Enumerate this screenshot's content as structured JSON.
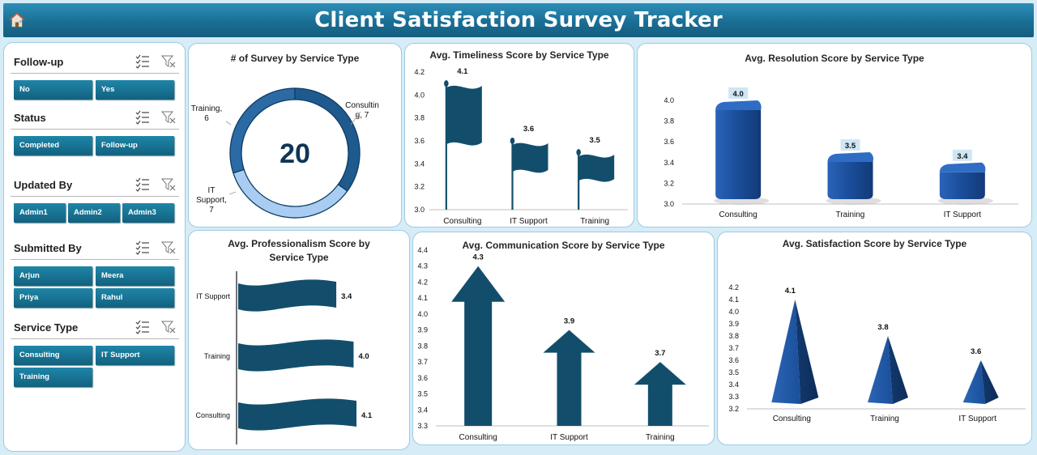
{
  "header": {
    "title": "Client Satisfaction Survey Tracker"
  },
  "colors": {
    "header": "#1a6e94",
    "navy": "#124e6b",
    "blue3d": "#1b55a3",
    "chip": "#15708f",
    "donut_dark": "#1f5a8f",
    "donut_light": "#a9cdf2"
  },
  "slicers": [
    {
      "id": "followup",
      "title": "Follow-up",
      "items": [
        "No",
        "Yes"
      ]
    },
    {
      "id": "status",
      "title": "Status",
      "items": [
        "Completed",
        "Follow-up"
      ]
    },
    {
      "id": "updated",
      "title": "Updated By",
      "items": [
        "Admin1",
        "Admin2",
        "Admin3"
      ]
    },
    {
      "id": "submitted",
      "title": "Submitted By",
      "items": [
        "Arjun",
        "Meera",
        "Priya",
        "Rahul"
      ]
    },
    {
      "id": "service",
      "title": "Service Type",
      "items": [
        "Consulting",
        "IT Support",
        "Training"
      ]
    }
  ],
  "slicer_icons": {
    "multiselect": "multi-select-icon",
    "clear": "clear-filter-icon"
  },
  "chart_data": [
    {
      "id": "surveys",
      "type": "pie",
      "title": "# of Survey  by Service Type",
      "center_label": "20",
      "categories": [
        "Consulting",
        "IT Support",
        "Training"
      ],
      "values": [
        7,
        7,
        6
      ],
      "labels": [
        "Consultin\ng, 7",
        "IT\nSupport,\n7",
        "Training,\n6"
      ]
    },
    {
      "id": "timeliness",
      "type": "bar",
      "title": "Avg. Timeliness Score by Service Type",
      "categories": [
        "Consulting",
        "IT Support",
        "Training"
      ],
      "values": [
        4.1,
        3.6,
        3.5
      ],
      "ylim": [
        3.0,
        4.2
      ],
      "yticks": [
        "3.0",
        "3.2",
        "3.4",
        "3.6",
        "3.8",
        "4.0",
        "4.2"
      ]
    },
    {
      "id": "resolution",
      "type": "bar",
      "title": "Avg. Resolution Score by Service Type",
      "categories": [
        "Consulting",
        "Training",
        "IT Support"
      ],
      "values": [
        4.0,
        3.5,
        3.4
      ],
      "ylim": [
        3.0,
        4.0
      ],
      "yticks": [
        "3.0",
        "3.2",
        "3.4",
        "3.6",
        "3.8",
        "4.0"
      ]
    },
    {
      "id": "professionalism",
      "type": "bar",
      "title": "Avg. Professionalism Score by\nService Type",
      "orientation": "horizontal",
      "categories": [
        "IT Support",
        "Training",
        "Consulting"
      ],
      "values": [
        3.4,
        4.0,
        4.1
      ]
    },
    {
      "id": "communication",
      "type": "bar",
      "title": "Avg. Communication Score by Service Type",
      "categories": [
        "Consulting",
        "IT Support",
        "Training"
      ],
      "values": [
        4.3,
        3.9,
        3.7
      ],
      "ylim": [
        3.3,
        4.4
      ],
      "yticks": [
        "3.3",
        "3.4",
        "3.5",
        "3.6",
        "3.7",
        "3.8",
        "3.9",
        "4.0",
        "4.1",
        "4.2",
        "4.3",
        "4.4"
      ]
    },
    {
      "id": "satisfaction",
      "type": "bar",
      "title": "Avg. Satisfaction Score by Service Type",
      "categories": [
        "Consulting",
        "Training",
        "IT Support"
      ],
      "values": [
        4.1,
        3.8,
        3.6
      ],
      "ylim": [
        3.2,
        4.2
      ],
      "yticks": [
        "3.2",
        "3.3",
        "3.4",
        "3.5",
        "3.6",
        "3.7",
        "3.8",
        "3.9",
        "4.0",
        "4.1",
        "4.2"
      ]
    }
  ]
}
